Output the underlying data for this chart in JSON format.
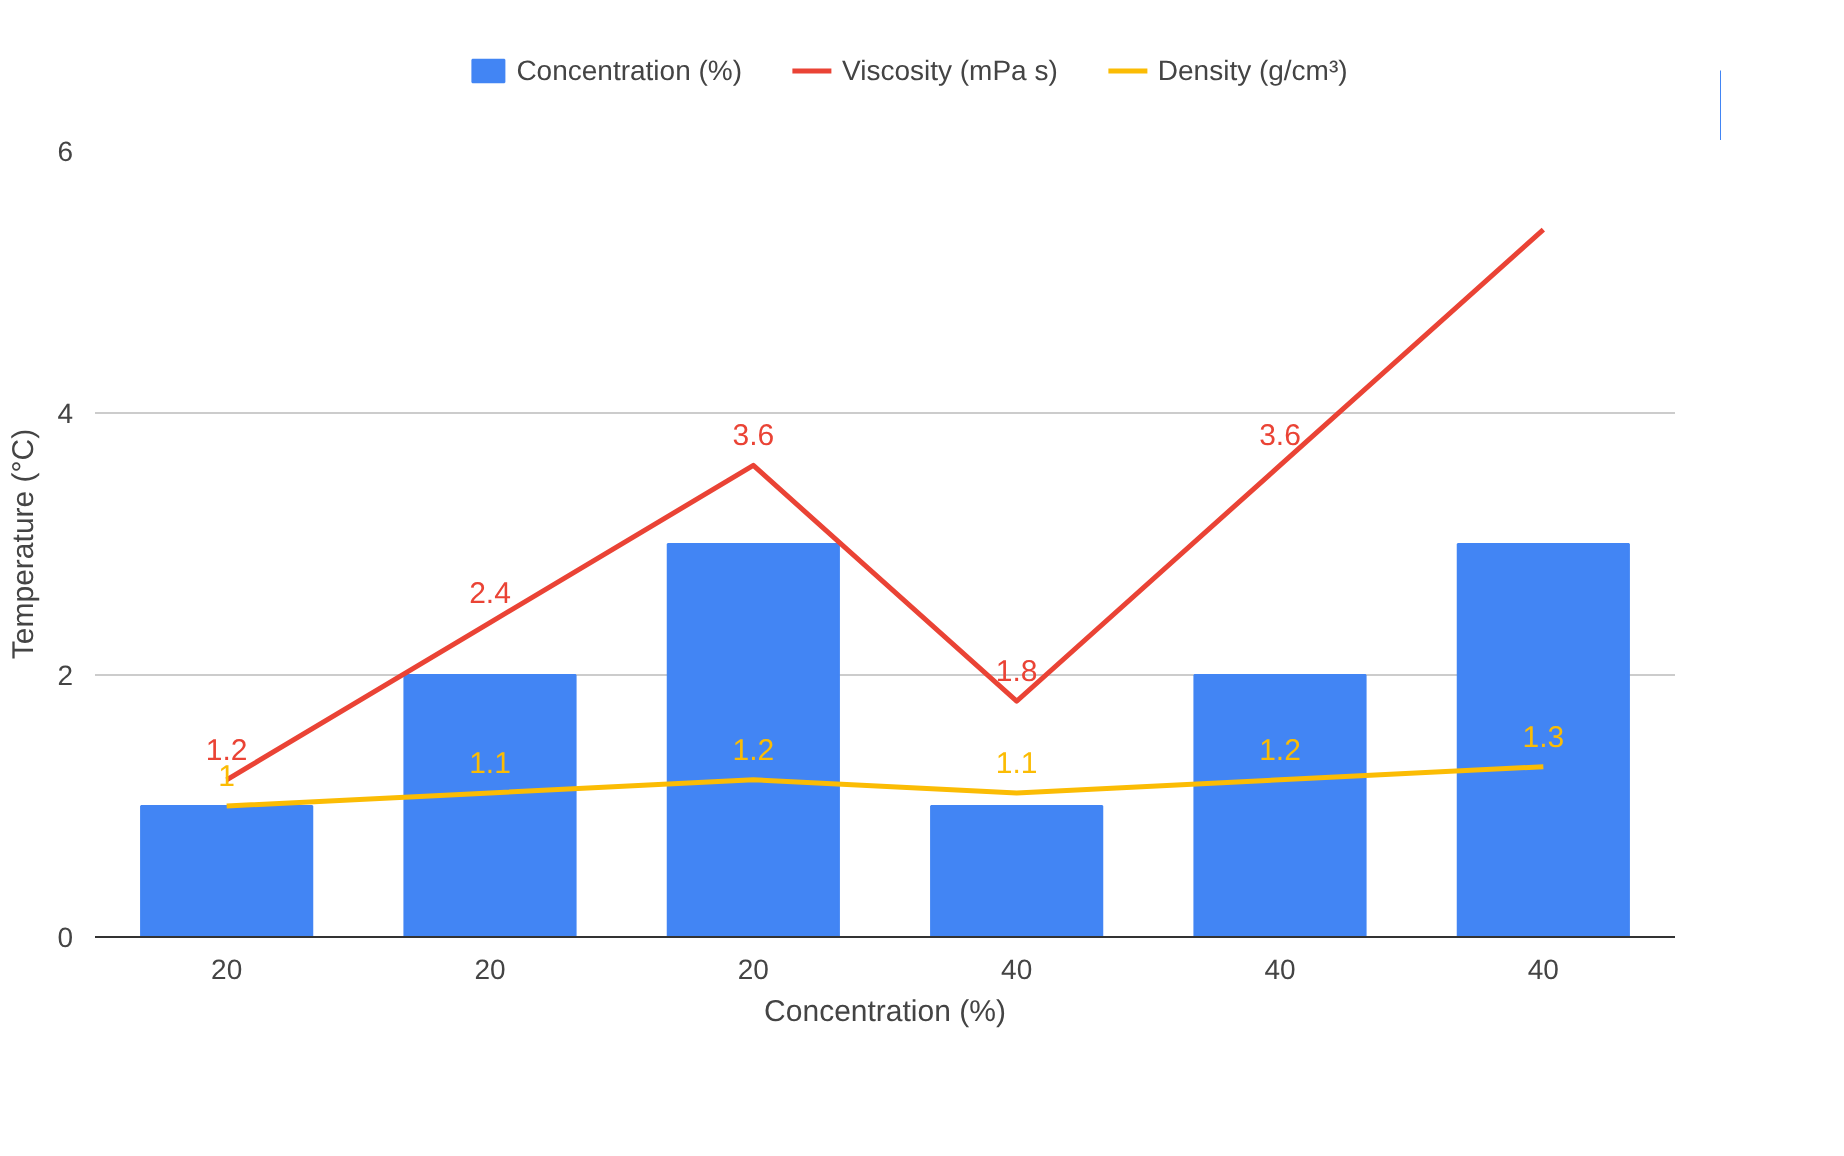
{
  "chart_data": {
    "type": "bar",
    "xlabel": "Concentration (%)",
    "ylabel": "Temperature (°C)",
    "categories": [
      "20",
      "20",
      "20",
      "40",
      "40",
      "40"
    ],
    "ylim": [
      0,
      6
    ],
    "yticks": [
      0,
      2,
      4,
      6
    ],
    "grid": "y",
    "legend": "top",
    "series": [
      {
        "name": "Concentration (%)",
        "color": "#4285f4",
        "values": [
          1,
          2,
          3,
          1,
          2,
          3
        ]
      },
      {
        "name": "Viscosity (mPa s)",
        "type": "line",
        "color": "#ea4335",
        "values": [
          1.2,
          2.4,
          3.6,
          1.8,
          3.6,
          5.4
        ],
        "value_labels": [
          "1.2",
          "2.4",
          "3.6",
          "1.8",
          "3.6",
          null
        ]
      },
      {
        "name": "Density (g/cm³)",
        "type": "line",
        "color": "#fbbc04",
        "values": [
          1,
          1.1,
          1.2,
          1.1,
          1.2,
          1.3
        ],
        "value_labels": [
          "1",
          "1.1",
          "1.2",
          "1.1",
          "1.2",
          "1.3"
        ]
      }
    ]
  }
}
